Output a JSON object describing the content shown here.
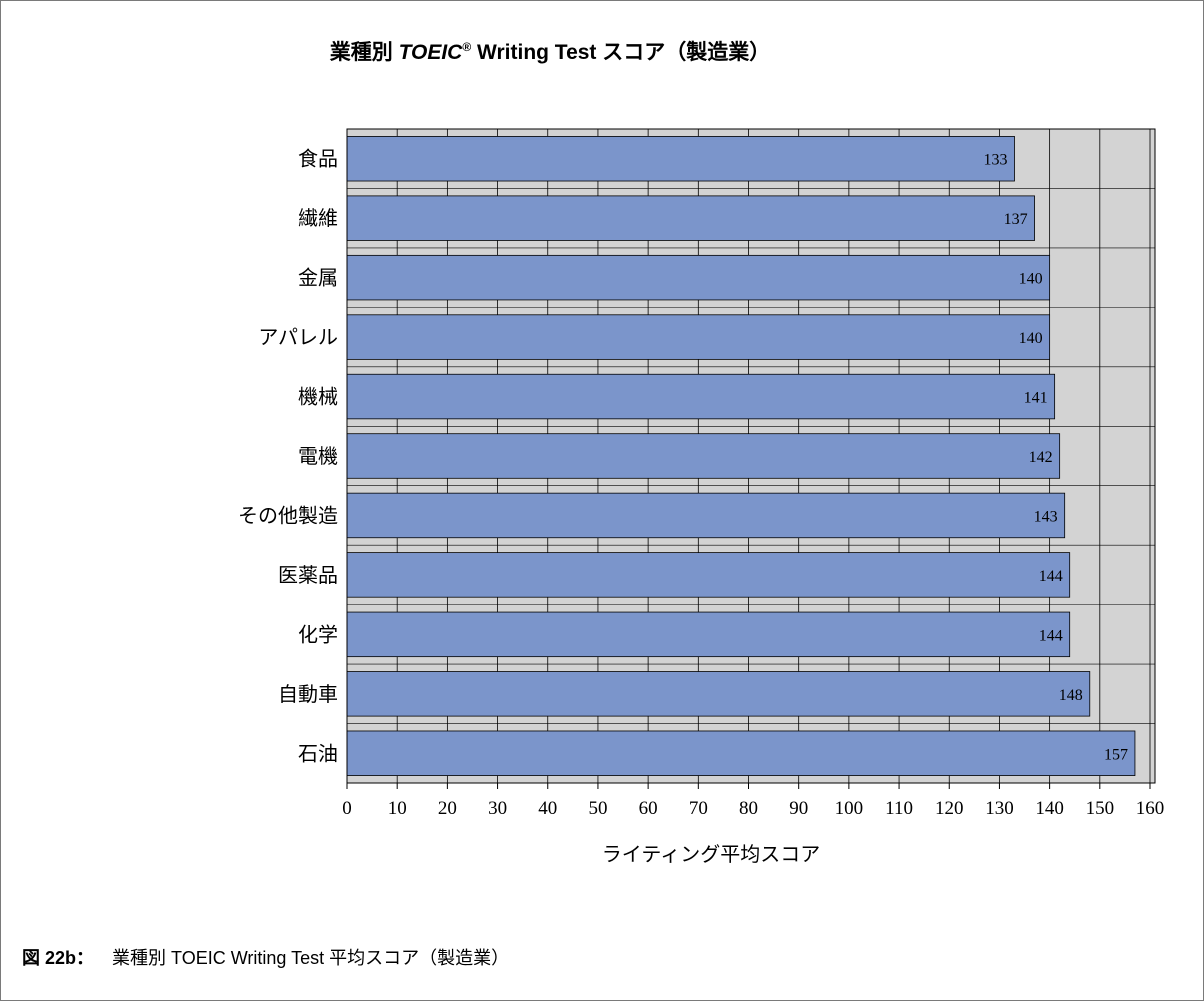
{
  "caption": {
    "number": "図 22b：",
    "text": "業種別 TOEIC Writing Test 平均スコア（製造業）"
  },
  "chart_data": {
    "type": "bar",
    "orientation": "horizontal",
    "title": {
      "prefix": "業種別 ",
      "brand": "TOEIC",
      "registered_mark": "®",
      "suffix": " Writing Test スコア（製造業）"
    },
    "categories": [
      "食品",
      "繊維",
      "金属",
      "アパレル",
      "機械",
      "電機",
      "その他製造",
      "医薬品",
      "化学",
      "自動車",
      "石油"
    ],
    "values": [
      133,
      137,
      140,
      140,
      141,
      142,
      143,
      144,
      144,
      148,
      157
    ],
    "data_labels": [
      "133",
      "137",
      "140",
      "140",
      "141",
      "142",
      "143",
      "144",
      "144",
      "148",
      "157"
    ],
    "xlabel": "ライティング平均スコア",
    "ylabel": "",
    "xlim": [
      0,
      160
    ],
    "xticks": [
      0,
      10,
      20,
      30,
      40,
      50,
      60,
      70,
      80,
      90,
      100,
      110,
      120,
      130,
      140,
      150,
      160
    ],
    "grid": true,
    "legend": "none",
    "colors": {
      "bar_fill": "#7b95cb",
      "bar_stroke": "#000000",
      "plot_bg": "#d3d3d3",
      "grid": "#000000"
    }
  }
}
